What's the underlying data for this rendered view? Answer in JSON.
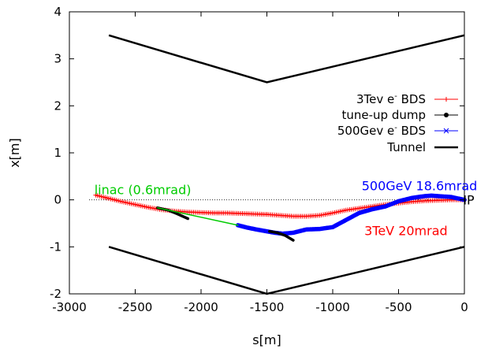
{
  "chart_data": {
    "type": "line",
    "xlabel": "s[m]",
    "ylabel": "x[m]",
    "xlim": [
      -3000,
      0
    ],
    "ylim": [
      -2,
      4
    ],
    "xticks": [
      -3000,
      -2500,
      -2000,
      -1500,
      -1000,
      -500,
      0
    ],
    "yticks": [
      -2,
      -1,
      0,
      1,
      2,
      3,
      4
    ],
    "grid": false,
    "legend_position": "right",
    "legend": [
      {
        "label": "3Tev e",
        "sup": "-",
        "label_after": " BDS",
        "color": "#ff0000",
        "marker": "plus"
      },
      {
        "label": "tune-up dump",
        "sup": "",
        "label_after": "",
        "color": "#000000",
        "marker": "dot"
      },
      {
        "label": "500Gev e",
        "sup": "-",
        "label_after": " BDS",
        "color": "#0000ff",
        "marker": "star"
      },
      {
        "label": "Tunnel",
        "sup": "",
        "label_after": "",
        "color": "#000000",
        "marker": "line"
      }
    ],
    "series": [
      {
        "name": "3Tev e- BDS",
        "color": "#ff0000",
        "x": [
          -2800,
          -2700,
          -2600,
          -2500,
          -2400,
          -2300,
          -2200,
          -2100,
          -2000,
          -1900,
          -1800,
          -1700,
          -1600,
          -1500,
          -1400,
          -1300,
          -1200,
          -1100,
          -1000,
          -900,
          -800,
          -700,
          -600,
          -500,
          -400,
          -300,
          -200,
          -100,
          0
        ],
        "y": [
          0.1,
          0.03,
          -0.04,
          -0.1,
          -0.16,
          -0.21,
          -0.24,
          -0.26,
          -0.27,
          -0.28,
          -0.28,
          -0.29,
          -0.3,
          -0.31,
          -0.33,
          -0.35,
          -0.35,
          -0.33,
          -0.28,
          -0.22,
          -0.18,
          -0.14,
          -0.1,
          -0.07,
          -0.04,
          -0.02,
          -0.01,
          0.0,
          0.0
        ]
      },
      {
        "name": "tune-up dump (3TeV)",
        "color": "#000000",
        "x": [
          -2330,
          -2250,
          -2180,
          -2100
        ],
        "y": [
          -0.17,
          -0.22,
          -0.3,
          -0.4
        ]
      },
      {
        "name": "500Gev e- BDS",
        "color": "#0000ff",
        "x": [
          -1720,
          -1650,
          -1580,
          -1500,
          -1440,
          -1380,
          -1300,
          -1200,
          -1100,
          -1000,
          -900,
          -800,
          -700,
          -600,
          -500,
          -400,
          -300,
          -250,
          -200,
          -150,
          -100,
          -50,
          0
        ],
        "y": [
          -0.54,
          -0.59,
          -0.63,
          -0.67,
          -0.7,
          -0.72,
          -0.7,
          -0.63,
          -0.62,
          -0.58,
          -0.43,
          -0.28,
          -0.2,
          -0.14,
          -0.03,
          0.04,
          0.08,
          0.09,
          0.08,
          0.07,
          0.06,
          0.03,
          0.0
        ]
      },
      {
        "name": "tune-up dump (500GeV)",
        "color": "#000000",
        "x": [
          -1480,
          -1420,
          -1360,
          -1300
        ],
        "y": [
          -0.67,
          -0.7,
          -0.76,
          -0.86
        ]
      },
      {
        "name": "linac (green)",
        "color": "#00cc00",
        "x": [
          -2330,
          -1720
        ],
        "y": [
          -0.17,
          -0.54
        ]
      }
    ],
    "tunnel": [
      {
        "x": [
          -2700,
          -1500,
          0
        ],
        "y": [
          3.5,
          2.5,
          3.5
        ]
      },
      {
        "x": [
          -2700,
          -1500,
          0
        ],
        "y": [
          -1.0,
          -2.0,
          -1.0
        ]
      }
    ],
    "reference_line_y": 0,
    "annotations": [
      {
        "text": "linac (0.6mrad)",
        "color": "#00cc00",
        "x": -2810,
        "y": 0.12
      },
      {
        "text": "500GeV 18.6mrad",
        "color": "#0000ff",
        "x": -780,
        "y": 0.2
      },
      {
        "text": "IP",
        "color": "#000000",
        "x": -10,
        "y": -0.1
      },
      {
        "text": "3TeV 20mrad",
        "color": "#ff0000",
        "x": -760,
        "y": -0.75
      }
    ]
  }
}
